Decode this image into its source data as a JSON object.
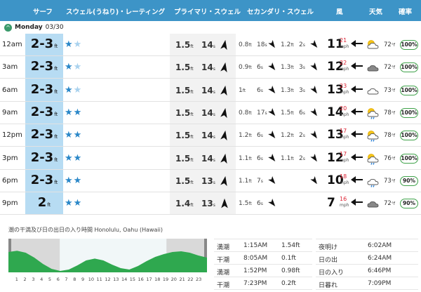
{
  "header": {
    "surf": "サーフ",
    "swell_rating": "スウェル(うねり)・レーティング",
    "primary_swell": "プライマリ・スウェル",
    "secondary_swell": "セカンダリ・スウェル",
    "wind": "風",
    "weather": "天気",
    "probability": "確率"
  },
  "day": {
    "name": "Monday",
    "date": "03/30"
  },
  "units": {
    "ft": "ft",
    "s": "s",
    "mph": "mph",
    "temp": "°f"
  },
  "rows": [
    {
      "time": "12am",
      "surf": "2-3",
      "stars_on": 1,
      "stars_off": 1,
      "p_height": "1.5",
      "p_period": "14",
      "p_dir": 10,
      "secondary": [
        {
          "h": "0.8",
          "p": "18",
          "d": 145
        },
        {
          "h": "1.2",
          "p": "2",
          "d": 140
        }
      ],
      "wind": "11",
      "gust": "21",
      "wind_dir": 0,
      "weather": "sun-cloud",
      "temp": "72",
      "prob": "100%"
    },
    {
      "time": "3am",
      "surf": "2-3",
      "stars_on": 1,
      "stars_off": 1,
      "p_height": "1.5",
      "p_period": "14",
      "p_dir": 10,
      "secondary": [
        {
          "h": "0.9",
          "p": "6",
          "d": 140
        },
        {
          "h": "1.3",
          "p": "3",
          "d": 145
        }
      ],
      "wind": "12",
      "gust": "22",
      "wind_dir": 0,
      "weather": "cloud",
      "temp": "72",
      "prob": "100%"
    },
    {
      "time": "6am",
      "surf": "2-3",
      "stars_on": 1,
      "stars_off": 1,
      "p_height": "1.5",
      "p_period": "14",
      "p_dir": 10,
      "secondary": [
        {
          "h": "1",
          "p": "6",
          "d": 140
        },
        {
          "h": "1.3",
          "p": "3",
          "d": 145
        }
      ],
      "wind": "13",
      "gust": "23",
      "wind_dir": 0,
      "weather": "cloud-outline",
      "temp": "73",
      "prob": "100%"
    },
    {
      "time": "9am",
      "surf": "2-3",
      "stars_on": 2,
      "stars_off": 0,
      "p_height": "1.5",
      "p_period": "14",
      "p_dir": 10,
      "secondary": [
        {
          "h": "0.8",
          "p": "17",
          "d": 140
        },
        {
          "h": "1.5",
          "p": "6",
          "d": 145
        }
      ],
      "wind": "14",
      "gust": "20",
      "wind_dir": 0,
      "weather": "sun-rain",
      "temp": "78",
      "prob": "100%"
    },
    {
      "time": "12pm",
      "surf": "2-3",
      "stars_on": 2,
      "stars_off": 0,
      "p_height": "1.5",
      "p_period": "14",
      "p_dir": 10,
      "secondary": [
        {
          "h": "1.2",
          "p": "6",
          "d": 140
        },
        {
          "h": "1.2",
          "p": "2",
          "d": 145
        }
      ],
      "wind": "13",
      "gust": "17",
      "wind_dir": 0,
      "weather": "sun-rain",
      "temp": "78",
      "prob": "100%"
    },
    {
      "time": "3pm",
      "surf": "2-3",
      "stars_on": 2,
      "stars_off": 0,
      "p_height": "1.5",
      "p_period": "14",
      "p_dir": 10,
      "secondary": [
        {
          "h": "1.1",
          "p": "6",
          "d": 140
        },
        {
          "h": "1.1",
          "p": "2",
          "d": 145
        }
      ],
      "wind": "12",
      "gust": "17",
      "wind_dir": 0,
      "weather": "sun-rain",
      "temp": "76",
      "prob": "100%"
    },
    {
      "time": "6pm",
      "surf": "2-3",
      "stars_on": 2,
      "stars_off": 0,
      "p_height": "1.5",
      "p_period": "13",
      "p_dir": 10,
      "secondary": [
        {
          "h": "1.1",
          "p": "7",
          "d": 140
        },
        {
          "h": "",
          "p": "",
          "d": 145
        }
      ],
      "wind": "10",
      "gust": "18",
      "wind_dir": 0,
      "weather": "cloud-rain",
      "temp": "73",
      "prob": "90%"
    },
    {
      "time": "9pm",
      "surf": "2",
      "stars_on": 2,
      "stars_off": 0,
      "p_height": "1.4",
      "p_period": "13",
      "p_dir": 0,
      "secondary": [
        {
          "h": "1.5",
          "p": "6",
          "d": 140
        },
        {
          "h": "",
          "p": "",
          "d": null
        }
      ],
      "wind": "7",
      "gust": "16",
      "wind_dir": 0,
      "weather": "cloud",
      "temp": "72",
      "prob": "90%"
    }
  ],
  "tide": {
    "title": "潮の干満及び日の出日の入り時間 Honolulu, Oahu (Hawaii)",
    "hours": [
      "1",
      "2",
      "3",
      "4",
      "5",
      "6",
      "7",
      "8",
      "9",
      "10",
      "11",
      "12",
      "13",
      "14",
      "15",
      "16",
      "17",
      "18",
      "19",
      "20",
      "21",
      "22",
      "23"
    ],
    "levels": [
      1.45,
      1.54,
      1.4,
      1.05,
      0.6,
      0.25,
      0.1,
      0.2,
      0.5,
      0.85,
      0.98,
      0.85,
      0.55,
      0.3,
      0.2,
      0.45,
      0.8,
      1.1,
      1.3,
      1.45,
      1.5,
      1.4,
      1.2,
      1.05
    ],
    "table": [
      {
        "type": "満潮",
        "time": "1:15AM",
        "height": "1.54ft"
      },
      {
        "type": "干潮",
        "time": "8:05AM",
        "height": "0.1ft"
      },
      {
        "type": "満潮",
        "time": "1:52PM",
        "height": "0.98ft"
      },
      {
        "type": "干潮",
        "time": "7:23PM",
        "height": "0.2ft"
      }
    ],
    "sun": [
      {
        "label": "夜明け",
        "time": "6:02AM"
      },
      {
        "label": "日の出",
        "time": "6:24AM"
      },
      {
        "label": "日の入り",
        "time": "6:46PM"
      },
      {
        "label": "日暮れ",
        "time": "7:09PM"
      }
    ]
  }
}
